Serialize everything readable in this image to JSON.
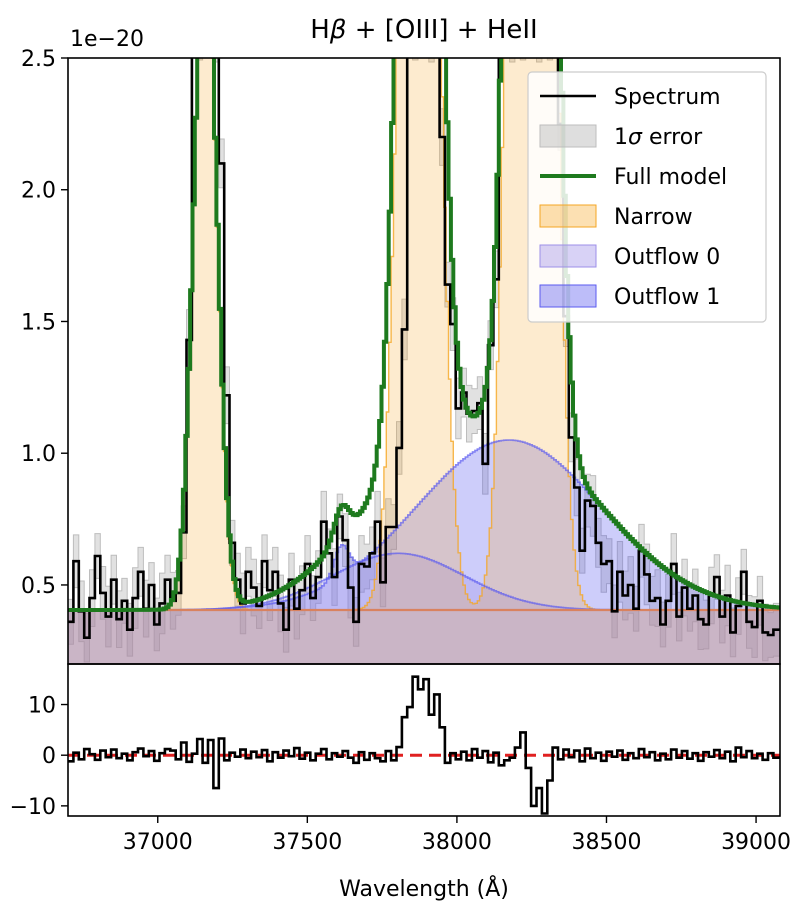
{
  "figure": {
    "title_prefix": "H",
    "title_beta": "β",
    "title_suffix": " + [OIII] + HeII",
    "scale_label": "1e−20"
  },
  "colors": {
    "spectrum": "#000000",
    "error": "#bdbdbd",
    "full_model": "#1e7a1e",
    "narrow": "#f5a623",
    "outflow0": "#9d8fe8",
    "outflow1": "#5a5af0",
    "baseline": "#d9825f",
    "residual_zero": "#e02020"
  },
  "chart_data": [
    {
      "type": "line",
      "panel": "main",
      "title": "Hβ + [OIII] + HeII",
      "xlim": [
        36700,
        39080
      ],
      "ylim": [
        0.2,
        2.5
      ],
      "y_scale_factor": "1e-20",
      "yticks": [
        {
          "value": 0.5,
          "label": "0.5"
        },
        {
          "value": 1.0,
          "label": "1.0"
        },
        {
          "value": 1.5,
          "label": "1.5"
        },
        {
          "value": 2.0,
          "label": "2.0"
        },
        {
          "value": 2.5,
          "label": "2.5"
        }
      ],
      "continuum": 0.405,
      "narrow_lines": [
        {
          "center": 37155,
          "sigma": 38,
          "amplitude": 2.6
        },
        {
          "center": 37870,
          "sigma": 52,
          "amplitude": 6.0
        },
        {
          "center": 38245,
          "sigma": 52,
          "amplitude": 10.0
        }
      ],
      "outflow0": [
        {
          "center": 37800,
          "sigma": 220,
          "amplitude": 0.215
        },
        {
          "center": 38175,
          "sigma": 220,
          "amplitude": 0.0
        }
      ],
      "outflow1": [
        {
          "center": 38170,
          "sigma": 310,
          "amplitude": 0.645
        },
        {
          "center": 37610,
          "sigma": 25,
          "amplitude": 0.12
        }
      ],
      "spectrum": [
        [
          36700,
          0.36
        ],
        [
          36718,
          0.59
        ],
        [
          36736,
          0.4
        ],
        [
          36754,
          0.3
        ],
        [
          36772,
          0.45
        ],
        [
          36790,
          0.61
        ],
        [
          36808,
          0.47
        ],
        [
          36826,
          0.38
        ],
        [
          36844,
          0.52
        ],
        [
          36862,
          0.37
        ],
        [
          36880,
          0.44
        ],
        [
          36898,
          0.33
        ],
        [
          36916,
          0.45
        ],
        [
          36934,
          0.55
        ],
        [
          36952,
          0.41
        ],
        [
          36970,
          0.5
        ],
        [
          36988,
          0.35
        ],
        [
          37006,
          0.43
        ],
        [
          37024,
          0.52
        ],
        [
          37042,
          0.44
        ],
        [
          37060,
          0.47
        ],
        [
          37078,
          0.7
        ],
        [
          37096,
          1.43
        ],
        [
          37114,
          2.6
        ],
        [
          37132,
          2.6
        ],
        [
          37150,
          2.6
        ],
        [
          37168,
          2.6
        ],
        [
          37186,
          2.6
        ],
        [
          37204,
          2.1
        ],
        [
          37222,
          1.22
        ],
        [
          37240,
          0.66
        ],
        [
          37258,
          0.52
        ],
        [
          37276,
          0.43
        ],
        [
          37294,
          0.55
        ],
        [
          37312,
          0.49
        ],
        [
          37330,
          0.42
        ],
        [
          37348,
          0.59
        ],
        [
          37366,
          0.48
        ],
        [
          37384,
          0.55
        ],
        [
          37402,
          0.43
        ],
        [
          37420,
          0.33
        ],
        [
          37438,
          0.52
        ],
        [
          37456,
          0.41
        ],
        [
          37474,
          0.48
        ],
        [
          37492,
          0.58
        ],
        [
          37510,
          0.45
        ],
        [
          37528,
          0.53
        ],
        [
          37546,
          0.74
        ],
        [
          37564,
          0.62
        ],
        [
          37582,
          0.53
        ],
        [
          37600,
          0.76
        ],
        [
          37618,
          0.67
        ],
        [
          37636,
          0.49
        ],
        [
          37654,
          0.36
        ],
        [
          37672,
          0.58
        ],
        [
          37690,
          0.57
        ],
        [
          37708,
          0.62
        ],
        [
          37726,
          0.74
        ],
        [
          37744,
          0.51
        ],
        [
          37762,
          0.72
        ],
        [
          37780,
          0.72
        ],
        [
          37798,
          1.02
        ],
        [
          37816,
          1.47
        ],
        [
          37834,
          2.6
        ],
        [
          37852,
          2.6
        ],
        [
          37870,
          2.6
        ],
        [
          37888,
          2.6
        ],
        [
          37906,
          2.6
        ],
        [
          37924,
          2.6
        ],
        [
          37942,
          2.2
        ],
        [
          37960,
          1.64
        ],
        [
          37978,
          1.49
        ],
        [
          37996,
          1.17
        ],
        [
          38014,
          1.23
        ],
        [
          38032,
          1.15
        ],
        [
          38050,
          1.16
        ],
        [
          38068,
          1.19
        ],
        [
          38086,
          0.96
        ],
        [
          38104,
          1.41
        ],
        [
          38122,
          1.66
        ],
        [
          38140,
          2.6
        ],
        [
          38158,
          2.6
        ],
        [
          38176,
          2.6
        ],
        [
          38194,
          2.6
        ],
        [
          38212,
          2.6
        ],
        [
          38230,
          2.6
        ],
        [
          38248,
          2.6
        ],
        [
          38266,
          2.6
        ],
        [
          38284,
          2.6
        ],
        [
          38302,
          2.6
        ],
        [
          38320,
          2.6
        ],
        [
          38338,
          2.25
        ],
        [
          38356,
          1.52
        ],
        [
          38374,
          1.06
        ],
        [
          38392,
          0.87
        ],
        [
          38410,
          0.63
        ],
        [
          38428,
          0.82
        ],
        [
          38446,
          0.8
        ],
        [
          38464,
          0.66
        ],
        [
          38482,
          0.58
        ],
        [
          38500,
          0.59
        ],
        [
          38518,
          0.4
        ],
        [
          38536,
          0.55
        ],
        [
          38554,
          0.46
        ],
        [
          38572,
          0.5
        ],
        [
          38590,
          0.41
        ],
        [
          38608,
          0.63
        ],
        [
          38626,
          0.54
        ],
        [
          38644,
          0.44
        ],
        [
          38662,
          0.45
        ],
        [
          38680,
          0.35
        ],
        [
          38698,
          0.44
        ],
        [
          38716,
          0.58
        ],
        [
          38734,
          0.38
        ],
        [
          38752,
          0.49
        ],
        [
          38770,
          0.41
        ],
        [
          38788,
          0.46
        ],
        [
          38806,
          0.37
        ],
        [
          38824,
          0.35
        ],
        [
          38842,
          0.46
        ],
        [
          38860,
          0.53
        ],
        [
          38878,
          0.38
        ],
        [
          38896,
          0.46
        ],
        [
          38914,
          0.32
        ],
        [
          38932,
          0.42
        ],
        [
          38950,
          0.55
        ],
        [
          38968,
          0.36
        ],
        [
          38986,
          0.34
        ],
        [
          39004,
          0.44
        ],
        [
          39022,
          0.32
        ],
        [
          39040,
          0.31
        ],
        [
          39058,
          0.33
        ],
        [
          39080,
          0.33
        ]
      ],
      "legend": {
        "placement": "top-right",
        "entries": [
          {
            "label": "Spectrum",
            "kind": "line",
            "color_key": "spectrum"
          },
          {
            "label_prefix": "1",
            "label_sigma": "σ",
            "label_suffix": " error",
            "kind": "patch",
            "color_key": "error"
          },
          {
            "label": "Full model",
            "kind": "line",
            "color_key": "full_model"
          },
          {
            "label": "Narrow",
            "kind": "patch",
            "color_key": "narrow"
          },
          {
            "label": "Outflow 0",
            "kind": "patch",
            "color_key": "outflow0"
          },
          {
            "label": "Outflow 1",
            "kind": "patch",
            "color_key": "outflow1"
          }
        ]
      }
    },
    {
      "type": "line",
      "panel": "residual",
      "xlim": [
        36700,
        39080
      ],
      "ylim": [
        -12,
        18
      ],
      "xlabel": "Wavelength (Å)",
      "xticks": [
        {
          "value": 37000,
          "label": "37000"
        },
        {
          "value": 37500,
          "label": "37500"
        },
        {
          "value": 38000,
          "label": "38000"
        },
        {
          "value": 38500,
          "label": "38500"
        },
        {
          "value": 39000,
          "label": "39000"
        }
      ],
      "yticks": [
        {
          "value": 10,
          "label": "10"
        },
        {
          "value": 0,
          "label": "0"
        },
        {
          "value": -10,
          "label": "−10"
        }
      ],
      "zero_line": 0,
      "residuals": [
        [
          36700,
          -1.2
        ],
        [
          36718,
          0.5
        ],
        [
          36736,
          -0.8
        ],
        [
          36754,
          1.2
        ],
        [
          36772,
          0.2
        ],
        [
          36790,
          -0.9
        ],
        [
          36808,
          0.9
        ],
        [
          36826,
          -0.4
        ],
        [
          36844,
          1.1
        ],
        [
          36862,
          -0.6
        ],
        [
          36880,
          0.3
        ],
        [
          36898,
          -1.0
        ],
        [
          36916,
          0.6
        ],
        [
          36934,
          1.3
        ],
        [
          36952,
          -0.2
        ],
        [
          36970,
          0.8
        ],
        [
          36988,
          -1.1
        ],
        [
          37006,
          0.4
        ],
        [
          37024,
          1.2
        ],
        [
          37042,
          0.9
        ],
        [
          37060,
          -0.8
        ],
        [
          37078,
          2.5
        ],
        [
          37096,
          -1.3
        ],
        [
          37114,
          0.3
        ],
        [
          37132,
          3.2
        ],
        [
          37150,
          -1.5
        ],
        [
          37168,
          3.0
        ],
        [
          37186,
          -6.5
        ],
        [
          37204,
          3.3
        ],
        [
          37222,
          -1.0
        ],
        [
          37240,
          0.5
        ],
        [
          37258,
          -0.3
        ],
        [
          37276,
          1.1
        ],
        [
          37294,
          -0.6
        ],
        [
          37312,
          0.7
        ],
        [
          37330,
          -0.4
        ],
        [
          37348,
          1.0
        ],
        [
          37366,
          -1.2
        ],
        [
          37384,
          0.6
        ],
        [
          37402,
          -0.5
        ],
        [
          37420,
          0.9
        ],
        [
          37438,
          -0.2
        ],
        [
          37456,
          1.4
        ],
        [
          37474,
          -0.7
        ],
        [
          37492,
          0.5
        ],
        [
          37510,
          -1.0
        ],
        [
          37528,
          0.3
        ],
        [
          37546,
          1.2
        ],
        [
          37564,
          -0.8
        ],
        [
          37582,
          0.4
        ],
        [
          37600,
          -0.3
        ],
        [
          37618,
          0.8
        ],
        [
          37636,
          -0.5
        ],
        [
          37654,
          -1.5
        ],
        [
          37672,
          0.6
        ],
        [
          37690,
          -0.9
        ],
        [
          37708,
          0.4
        ],
        [
          37726,
          -0.6
        ],
        [
          37744,
          -1.2
        ],
        [
          37762,
          0.8
        ],
        [
          37780,
          -1.0
        ],
        [
          37798,
          1.6
        ],
        [
          37816,
          7.5
        ],
        [
          37834,
          9.5
        ],
        [
          37852,
          15.5
        ],
        [
          37870,
          13.0
        ],
        [
          37888,
          15.0
        ],
        [
          37906,
          8.0
        ],
        [
          37924,
          12.0
        ],
        [
          37942,
          5.5
        ],
        [
          37960,
          -1.5
        ],
        [
          37978,
          0.4
        ],
        [
          37996,
          -0.8
        ],
        [
          38014,
          0.7
        ],
        [
          38032,
          -1.0
        ],
        [
          38050,
          1.2
        ],
        [
          38068,
          -0.5
        ],
        [
          38086,
          0.8
        ],
        [
          38104,
          -1.4
        ],
        [
          38122,
          0.5
        ],
        [
          38140,
          -2.0
        ],
        [
          38158,
          -1.0
        ],
        [
          38176,
          -0.5
        ],
        [
          38194,
          1.5
        ],
        [
          38212,
          4.5
        ],
        [
          38230,
          -2.5
        ],
        [
          38248,
          -10.0
        ],
        [
          38266,
          -6.5
        ],
        [
          38284,
          -11.5
        ],
        [
          38302,
          -5.0
        ],
        [
          38320,
          1.5
        ],
        [
          38338,
          -0.8
        ],
        [
          38356,
          1.1
        ],
        [
          38374,
          -0.4
        ],
        [
          38392,
          0.9
        ],
        [
          38410,
          -1.2
        ],
        [
          38428,
          1.3
        ],
        [
          38446,
          -0.6
        ],
        [
          38464,
          0.5
        ],
        [
          38482,
          -1.1
        ],
        [
          38500,
          0.7
        ],
        [
          38518,
          -0.3
        ],
        [
          38536,
          0.9
        ],
        [
          38554,
          -0.9
        ],
        [
          38572,
          0.4
        ],
        [
          38590,
          -0.6
        ],
        [
          38608,
          1.2
        ],
        [
          38626,
          -0.4
        ],
        [
          38644,
          0.6
        ],
        [
          38662,
          -1.0
        ],
        [
          38680,
          0.3
        ],
        [
          38698,
          -0.8
        ],
        [
          38716,
          1.1
        ],
        [
          38734,
          -0.5
        ],
        [
          38752,
          0.8
        ],
        [
          38770,
          -0.7
        ],
        [
          38788,
          0.4
        ],
        [
          38806,
          -1.1
        ],
        [
          38824,
          0.6
        ],
        [
          38842,
          -0.3
        ],
        [
          38860,
          1.0
        ],
        [
          38878,
          -0.6
        ],
        [
          38896,
          0.7
        ],
        [
          38914,
          -1.2
        ],
        [
          38932,
          1.5
        ],
        [
          38950,
          -0.4
        ],
        [
          38968,
          0.8
        ],
        [
          38986,
          -0.6
        ],
        [
          39004,
          0.3
        ],
        [
          39022,
          -0.9
        ],
        [
          39040,
          0.4
        ],
        [
          39058,
          -0.5
        ],
        [
          39080,
          -0.2
        ]
      ]
    }
  ]
}
